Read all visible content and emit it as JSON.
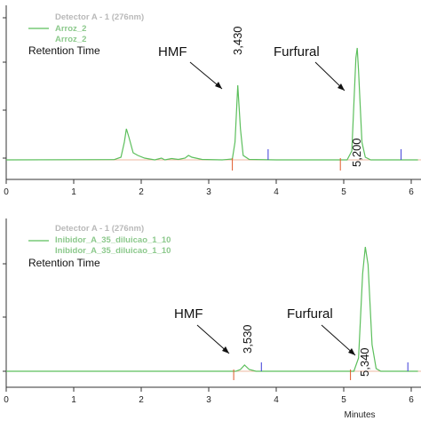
{
  "colors": {
    "trace": "#5cbf5c",
    "baseline": "#e8a080",
    "start_marker": "#e05a2a",
    "end_marker": "#3b3bd8",
    "legend_header": "#b9b9b9",
    "legend_item": "#8cc98c"
  },
  "chart_data": [
    {
      "type": "line",
      "legend_header": "Detector A - 1 (276nm)",
      "legend_items": [
        "Arroz_2",
        "Arroz_2"
      ],
      "retention_label": "Retention Time",
      "xlim": [
        0,
        6.1
      ],
      "x_ticks": [
        "0",
        "1",
        "2",
        "3",
        "4",
        "5",
        "6"
      ],
      "xlabel": "",
      "peaks": [
        {
          "label": "HMF",
          "retention_time": "3,430",
          "x": 3.43
        },
        {
          "label": "Furfural",
          "retention_time": "5,200",
          "x": 5.2
        }
      ],
      "series": [
        {
          "values": [
            [
              0,
              0
            ],
            [
              1.6,
              0.3
            ],
            [
              1.7,
              3
            ],
            [
              1.75,
              20
            ],
            [
              1.78,
              35
            ],
            [
              1.82,
              25
            ],
            [
              1.88,
              8
            ],
            [
              1.95,
              5
            ],
            [
              2.05,
              2
            ],
            [
              2.2,
              0
            ],
            [
              2.3,
              2
            ],
            [
              2.35,
              0
            ],
            [
              2.45,
              1.5
            ],
            [
              2.55,
              0.5
            ],
            [
              2.65,
              2
            ],
            [
              2.7,
              5
            ],
            [
              2.75,
              3
            ],
            [
              2.9,
              0.5
            ],
            [
              3.2,
              0
            ],
            [
              3.35,
              1
            ],
            [
              3.39,
              20
            ],
            [
              3.43,
              84
            ],
            [
              3.47,
              35
            ],
            [
              3.51,
              5
            ],
            [
              3.6,
              0.5
            ],
            [
              4,
              0
            ],
            [
              4.3,
              0
            ],
            [
              5.05,
              0
            ],
            [
              5.12,
              10
            ],
            [
              5.18,
              115
            ],
            [
              5.2,
              126
            ],
            [
              5.22,
              100
            ],
            [
              5.27,
              20
            ],
            [
              5.32,
              3
            ],
            [
              5.4,
              0
            ],
            [
              6.1,
              0
            ]
          ]
        }
      ],
      "markers": {
        "start": [
          3.35,
          4.95
        ],
        "end": [
          3.88,
          5.85
        ]
      }
    },
    {
      "type": "line",
      "legend_header": "Detector A - 1 (276nm)",
      "legend_items": [
        "Inibidor_A_35_diluicao_1_10",
        "Inibidor_A_35_diluicao_1_10"
      ],
      "retention_label": "Retention Time",
      "xlim": [
        0,
        6.1
      ],
      "x_ticks": [
        "0",
        "1",
        "2",
        "3",
        "4",
        "5",
        "6"
      ],
      "xlabel": "Minutes",
      "peaks": [
        {
          "label": "HMF",
          "retention_time": "3,530",
          "x": 3.53
        },
        {
          "label": "Furfural",
          "retention_time": "5,340",
          "x": 5.34
        }
      ],
      "series": [
        {
          "values": [
            [
              0,
              0
            ],
            [
              3.4,
              0
            ],
            [
              3.47,
              2
            ],
            [
              3.53,
              7
            ],
            [
              3.6,
              2
            ],
            [
              3.7,
              0
            ],
            [
              5.15,
              0
            ],
            [
              5.22,
              15
            ],
            [
              5.28,
              110
            ],
            [
              5.32,
              140
            ],
            [
              5.36,
              120
            ],
            [
              5.42,
              30
            ],
            [
              5.48,
              3
            ],
            [
              5.55,
              0
            ],
            [
              6.1,
              0
            ]
          ]
        }
      ],
      "markers": {
        "start": [
          3.37,
          5.1
        ],
        "end": [
          3.78,
          5.95
        ]
      }
    }
  ]
}
